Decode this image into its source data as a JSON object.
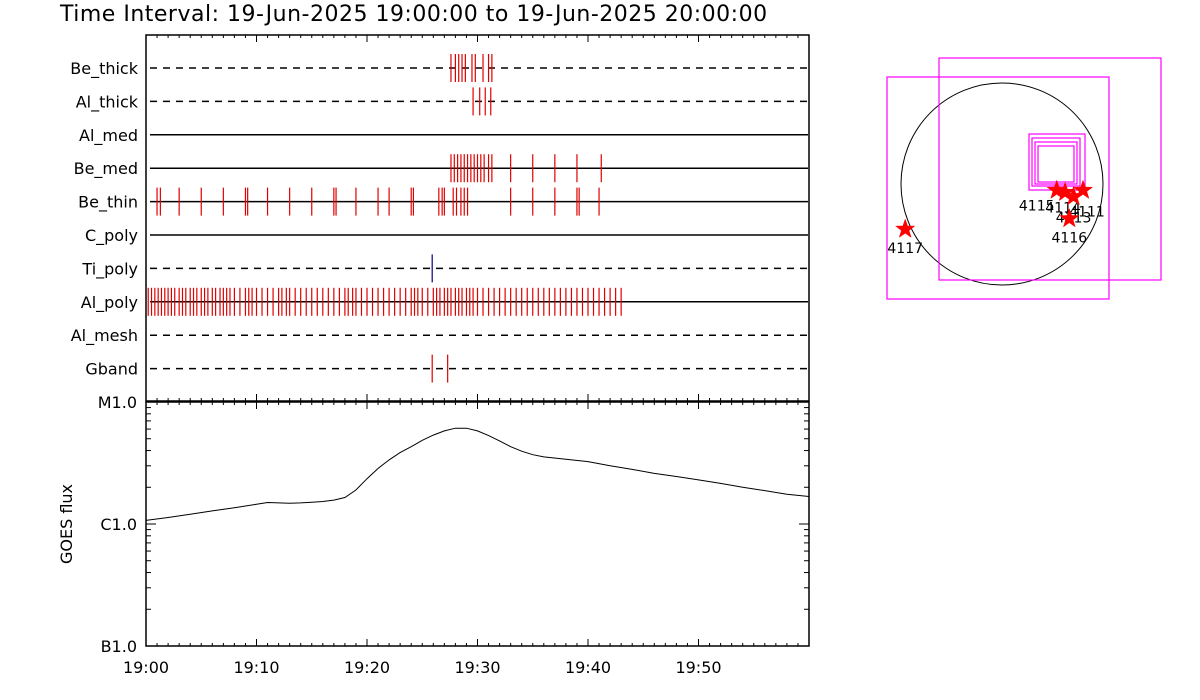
{
  "title": "Time Interval: 19-Jun-2025 19:00:00 to 19-Jun-2025 20:00:00",
  "colors": {
    "event": "#e00000",
    "tipoly": "#00007f",
    "box": "#ff00ff",
    "star": "#ff0000"
  },
  "chart_data": [
    {
      "type": "event-timeline",
      "x_unit": "minutes after 19:00",
      "xlim": [
        0,
        60
      ],
      "rows": [
        {
          "label": "Be_thick",
          "style": "dashed",
          "color": "#e00000",
          "events": [
            27.6,
            28.0,
            28.3,
            28.6,
            28.9,
            29.5,
            29.8,
            30.5,
            31.0,
            31.3
          ]
        },
        {
          "label": "Al_thick",
          "style": "dashed",
          "color": "#e00000",
          "events": [
            29.6,
            30.2,
            30.7,
            31.2
          ]
        },
        {
          "label": "Al_med",
          "style": "solid",
          "color": "#e00000",
          "events": []
        },
        {
          "label": "Be_med",
          "style": "solid",
          "color": "#e00000",
          "events": [
            27.6,
            27.9,
            28.2,
            28.5,
            28.8,
            29.1,
            29.4,
            29.7,
            30.0,
            30.3,
            30.6,
            31.0,
            31.3,
            33.0,
            35.0,
            37.0,
            39.0,
            41.2
          ]
        },
        {
          "label": "Be_thin",
          "style": "solid",
          "color": "#e00000",
          "events": [
            1.0,
            1.3,
            3.0,
            5.0,
            7.0,
            9.0,
            9.2,
            11.0,
            13.0,
            15.0,
            17.0,
            17.2,
            19.0,
            21.0,
            22.0,
            24.0,
            24.2,
            26.5,
            26.8,
            27.0,
            27.8,
            28.1,
            28.5,
            28.8,
            29.1,
            33.0,
            35.0,
            37.0,
            39.0,
            39.2,
            41.0
          ]
        },
        {
          "label": "C_poly",
          "style": "solid",
          "color": "#e00000",
          "events": []
        },
        {
          "label": "Ti_poly",
          "style": "dashed",
          "color": "#00007f",
          "events": [
            25.9
          ]
        },
        {
          "label": "Al_poly",
          "style": "solid",
          "color": "#e00000",
          "events": [
            0.2,
            0.5,
            0.8,
            1.1,
            1.4,
            1.7,
            2.0,
            2.3,
            2.6,
            3.0,
            3.3,
            3.6,
            4.0,
            4.3,
            4.6,
            5.0,
            5.3,
            5.6,
            6.0,
            6.3,
            6.7,
            7.0,
            7.3,
            7.6,
            8.0,
            8.5,
            9.0,
            9.3,
            9.6,
            10.0,
            10.5,
            11.0,
            11.5,
            12.0,
            12.3,
            12.7,
            13.0,
            13.5,
            14.0,
            14.5,
            15.0,
            15.5,
            16.0,
            16.5,
            17.0,
            17.5,
            18.0,
            18.3,
            18.7,
            19.0,
            19.5,
            20.0,
            20.5,
            21.0,
            21.5,
            22.0,
            22.5,
            23.0,
            23.5,
            24.0,
            24.3,
            24.6,
            25.0,
            25.5,
            26.0,
            26.3,
            26.6,
            27.0,
            27.3,
            27.6,
            28.0,
            28.3,
            28.6,
            29.0,
            29.3,
            29.6,
            30.0,
            30.5,
            31.0,
            31.5,
            32.0,
            32.5,
            33.0,
            33.5,
            34.0,
            34.5,
            35.0,
            35.5,
            36.0,
            36.5,
            37.0,
            37.5,
            38.0,
            38.5,
            39.0,
            39.5,
            40.0,
            40.5,
            41.0,
            41.5,
            42.0,
            42.5,
            43.0
          ]
        },
        {
          "label": "Al_mesh",
          "style": "dashed",
          "color": "#e00000",
          "events": []
        },
        {
          "label": "Gband",
          "style": "dashed",
          "color": "#e00000",
          "events": [
            25.9,
            27.3
          ]
        }
      ]
    },
    {
      "type": "line",
      "ylabel": "GOES flux",
      "ylog": true,
      "ylim": [
        1e-07,
        1e-05
      ],
      "yticks": [
        {
          "value": 1e-07,
          "label": "B1.0"
        },
        {
          "value": 1e-06,
          "label": "C1.0"
        },
        {
          "value": 1e-05,
          "label": "M1.0"
        }
      ],
      "xlim": [
        0,
        60
      ],
      "xticks": [
        "19:00",
        "19:10",
        "19:20",
        "19:30",
        "19:40",
        "19:50"
      ],
      "x_minutes": [
        0,
        2,
        4,
        6,
        8,
        10,
        11,
        12,
        13,
        14,
        15,
        16,
        17,
        18,
        19,
        20,
        21,
        22,
        23,
        24,
        25,
        26,
        27,
        28,
        29,
        30,
        31,
        32,
        33,
        34,
        35,
        36,
        38,
        40,
        42,
        44,
        46,
        48,
        50,
        52,
        54,
        56,
        58,
        60
      ],
      "y": [
        1.07e-06,
        1.13e-06,
        1.2e-06,
        1.28e-06,
        1.36e-06,
        1.45e-06,
        1.5e-06,
        1.49e-06,
        1.48e-06,
        1.49e-06,
        1.51e-06,
        1.53e-06,
        1.57e-06,
        1.65e-06,
        1.9e-06,
        2.35e-06,
        2.85e-06,
        3.35e-06,
        3.85e-06,
        4.3e-06,
        4.85e-06,
        5.35e-06,
        5.8e-06,
        6.1e-06,
        6.1e-06,
        5.8e-06,
        5.3e-06,
        4.8e-06,
        4.3e-06,
        3.95e-06,
        3.7e-06,
        3.55e-06,
        3.4e-06,
        3.25e-06,
        3e-06,
        2.8e-06,
        2.6e-06,
        2.45e-06,
        2.3e-06,
        2.15e-06,
        2e-06,
        1.88e-06,
        1.75e-06,
        1.68e-06
      ]
    },
    {
      "type": "map",
      "regions": [
        {
          "label": "4115",
          "lx": 520,
          "ly": -60
        },
        {
          "label": "4114",
          "lx": 600,
          "ly": -80
        },
        {
          "label": "4113",
          "lx": 680,
          "ly": -120
        },
        {
          "label": "4111",
          "lx": 770,
          "ly": -60
        },
        {
          "label": "4116",
          "lx": 640,
          "ly": -330
        },
        {
          "label": "4117",
          "lx": -920,
          "ly": -430
        }
      ]
    }
  ]
}
